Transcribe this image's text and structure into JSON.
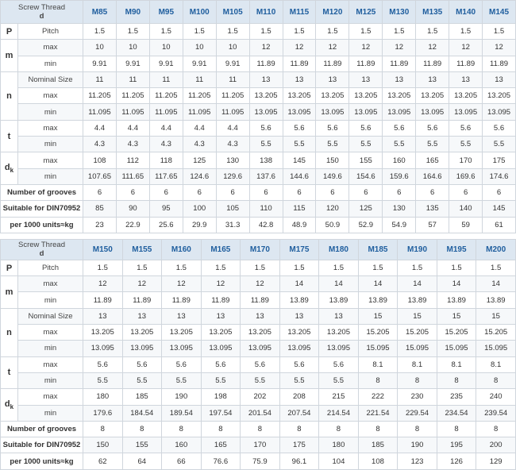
{
  "tables": [
    {
      "header": {
        "line1": "Screw Thread",
        "line2": "d"
      },
      "sizes": [
        "M85",
        "M90",
        "M95",
        "M100",
        "M105",
        "M110",
        "M115",
        "M120",
        "M125",
        "M130",
        "M135",
        "M140",
        "M145"
      ],
      "symbols": {
        "P": "P",
        "m": "m",
        "n": "n",
        "t": "t",
        "dk_main": "d",
        "dk_sub": "k"
      },
      "labels": {
        "pitch": "Pitch",
        "max": "max",
        "min": "min",
        "nominal": "Nominal Size",
        "grooves": "Number of grooves",
        "suitable": "Suitable for DIN70952",
        "weight": "per 1000 units≈kg"
      },
      "rows": {
        "pitch": [
          "1.5",
          "1.5",
          "1.5",
          "1.5",
          "1.5",
          "1.5",
          "1.5",
          "1.5",
          "1.5",
          "1.5",
          "1.5",
          "1.5",
          "1.5"
        ],
        "m_max": [
          "10",
          "10",
          "10",
          "10",
          "10",
          "12",
          "12",
          "12",
          "12",
          "12",
          "12",
          "12",
          "12"
        ],
        "m_min": [
          "9.91",
          "9.91",
          "9.91",
          "9.91",
          "9.91",
          "11.89",
          "11.89",
          "11.89",
          "11.89",
          "11.89",
          "11.89",
          "11.89",
          "11.89"
        ],
        "n_nom": [
          "11",
          "11",
          "11",
          "11",
          "11",
          "13",
          "13",
          "13",
          "13",
          "13",
          "13",
          "13",
          "13"
        ],
        "n_max": [
          "11.205",
          "11.205",
          "11.205",
          "11.205",
          "11.205",
          "13.205",
          "13.205",
          "13.205",
          "13.205",
          "13.205",
          "13.205",
          "13.205",
          "13.205"
        ],
        "n_min": [
          "11.095",
          "11.095",
          "11.095",
          "11.095",
          "11.095",
          "13.095",
          "13.095",
          "13.095",
          "13.095",
          "13.095",
          "13.095",
          "13.095",
          "13.095"
        ],
        "t_max": [
          "4.4",
          "4.4",
          "4.4",
          "4.4",
          "4.4",
          "5.6",
          "5.6",
          "5.6",
          "5.6",
          "5.6",
          "5.6",
          "5.6",
          "5.6"
        ],
        "t_min": [
          "4.3",
          "4.3",
          "4.3",
          "4.3",
          "4.3",
          "5.5",
          "5.5",
          "5.5",
          "5.5",
          "5.5",
          "5.5",
          "5.5",
          "5.5"
        ],
        "dk_max": [
          "108",
          "112",
          "118",
          "125",
          "130",
          "138",
          "145",
          "150",
          "155",
          "160",
          "165",
          "170",
          "175"
        ],
        "dk_min": [
          "107.65",
          "111.65",
          "117.65",
          "124.6",
          "129.6",
          "137.6",
          "144.6",
          "149.6",
          "154.6",
          "159.6",
          "164.6",
          "169.6",
          "174.6"
        ],
        "grooves": [
          "6",
          "6",
          "6",
          "6",
          "6",
          "6",
          "6",
          "6",
          "6",
          "6",
          "6",
          "6",
          "6"
        ],
        "suitable": [
          "85",
          "90",
          "95",
          "100",
          "105",
          "110",
          "115",
          "120",
          "125",
          "130",
          "135",
          "140",
          "145"
        ],
        "weight": [
          "23",
          "22.9",
          "25.6",
          "29.9",
          "31.3",
          "42.8",
          "48.9",
          "50.9",
          "52.9",
          "54.9",
          "57",
          "59",
          "61"
        ]
      }
    },
    {
      "header": {
        "line1": "Screw Thread",
        "line2": "d"
      },
      "sizes": [
        "M150",
        "M155",
        "M160",
        "M165",
        "M170",
        "M175",
        "M180",
        "M185",
        "M190",
        "M195",
        "M200"
      ],
      "symbols": {
        "P": "P",
        "m": "m",
        "n": "n",
        "t": "t",
        "dk_main": "d",
        "dk_sub": "k"
      },
      "labels": {
        "pitch": "Pitch",
        "max": "max",
        "min": "min",
        "nominal": "Nominal Size",
        "grooves": "Number of grooves",
        "suitable": "Suitable for DIN70952",
        "weight": "per 1000 units≈kg"
      },
      "rows": {
        "pitch": [
          "1.5",
          "1.5",
          "1.5",
          "1.5",
          "1.5",
          "1.5",
          "1.5",
          "1.5",
          "1.5",
          "1.5",
          "1.5"
        ],
        "m_max": [
          "12",
          "12",
          "12",
          "12",
          "12",
          "14",
          "14",
          "14",
          "14",
          "14",
          "14"
        ],
        "m_min": [
          "11.89",
          "11.89",
          "11.89",
          "11.89",
          "11.89",
          "13.89",
          "13.89",
          "13.89",
          "13.89",
          "13.89",
          "13.89"
        ],
        "n_nom": [
          "13",
          "13",
          "13",
          "13",
          "13",
          "13",
          "13",
          "15",
          "15",
          "15",
          "15"
        ],
        "n_max": [
          "13.205",
          "13.205",
          "13.205",
          "13.205",
          "13.205",
          "13.205",
          "13.205",
          "15.205",
          "15.205",
          "15.205",
          "15.205"
        ],
        "n_min": [
          "13.095",
          "13.095",
          "13.095",
          "13.095",
          "13.095",
          "13.095",
          "13.095",
          "15.095",
          "15.095",
          "15.095",
          "15.095"
        ],
        "t_max": [
          "5.6",
          "5.6",
          "5.6",
          "5.6",
          "5.6",
          "5.6",
          "5.6",
          "8.1",
          "8.1",
          "8.1",
          "8.1"
        ],
        "t_min": [
          "5.5",
          "5.5",
          "5.5",
          "5.5",
          "5.5",
          "5.5",
          "5.5",
          "8",
          "8",
          "8",
          "8"
        ],
        "dk_max": [
          "180",
          "185",
          "190",
          "198",
          "202",
          "208",
          "215",
          "222",
          "230",
          "235",
          "240"
        ],
        "dk_min": [
          "179.6",
          "184.54",
          "189.54",
          "197.54",
          "201.54",
          "207.54",
          "214.54",
          "221.54",
          "229.54",
          "234.54",
          "239.54"
        ],
        "grooves": [
          "8",
          "8",
          "8",
          "8",
          "8",
          "8",
          "8",
          "8",
          "8",
          "8",
          "8"
        ],
        "suitable": [
          "150",
          "155",
          "160",
          "165",
          "170",
          "175",
          "180",
          "185",
          "190",
          "195",
          "200"
        ],
        "weight": [
          "62",
          "64",
          "66",
          "76.6",
          "75.9",
          "96.1",
          "104",
          "108",
          "123",
          "126",
          "129"
        ]
      }
    }
  ]
}
